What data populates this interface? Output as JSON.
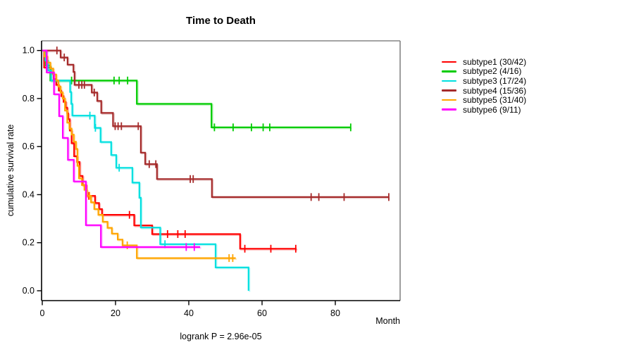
{
  "title": "Time to Death",
  "xlabel": "Month",
  "ylabel": "cumulative survival rate",
  "footnote": "logrank P = 2.96e-05",
  "chart_data": {
    "type": "line",
    "subtype": "kaplan-meier-step-curves",
    "title": "Time to Death",
    "xlabel": "Month",
    "ylabel": "cumulative survival rate",
    "annotation": "logrank P = 2.96e-05",
    "xlim": [
      0,
      98
    ],
    "ylim": [
      0.0,
      1.0
    ],
    "x_ticks": [
      0,
      20,
      40,
      60,
      80
    ],
    "y_ticks": [
      0.0,
      0.2,
      0.4,
      0.6,
      0.8,
      1.0
    ],
    "grid": false,
    "legend_position": "right-outside",
    "series": [
      {
        "name": "subtype1",
        "label": "subtype1 (30/42)",
        "events": "30/42",
        "color": "#FF0000",
        "end_month": 69.4,
        "steps": [
          [
            0,
            1.0
          ],
          [
            0.5,
            0.929
          ],
          [
            2.3,
            0.905
          ],
          [
            3.1,
            0.881
          ],
          [
            3.8,
            0.857
          ],
          [
            4.5,
            0.833
          ],
          [
            5.2,
            0.81
          ],
          [
            5.8,
            0.786
          ],
          [
            6.4,
            0.762
          ],
          [
            6.8,
            0.738
          ],
          [
            7.1,
            0.714
          ],
          [
            7.5,
            0.667
          ],
          [
            8.0,
            0.614
          ],
          [
            8.7,
            0.56
          ],
          [
            9.5,
            0.536
          ],
          [
            10.2,
            0.478
          ],
          [
            11.0,
            0.44
          ],
          [
            12.0,
            0.395
          ],
          [
            14.4,
            0.365
          ],
          [
            15.5,
            0.34
          ],
          [
            16.3,
            0.316
          ],
          [
            25.1,
            0.272
          ],
          [
            30.0,
            0.236
          ],
          [
            54.0,
            0.175
          ]
        ],
        "censors": [
          [
            12.7,
            0.395
          ],
          [
            23.8,
            0.316
          ],
          [
            34.2,
            0.236
          ],
          [
            37.0,
            0.236
          ],
          [
            39.0,
            0.236
          ],
          [
            55.3,
            0.175
          ],
          [
            62.4,
            0.175
          ],
          [
            69.2,
            0.175
          ]
        ]
      },
      {
        "name": "subtype2",
        "label": "subtype2 (4/16)",
        "events": "4/16",
        "color": "#00CC00",
        "end_month": 84.2,
        "steps": [
          [
            0,
            1.0
          ],
          [
            1.0,
            0.938
          ],
          [
            2.2,
            0.875
          ],
          [
            25.8,
            0.778
          ],
          [
            46.2,
            0.68
          ]
        ],
        "censors": [
          [
            8.0,
            0.875
          ],
          [
            19.6,
            0.875
          ],
          [
            21.0,
            0.875
          ],
          [
            23.3,
            0.875
          ],
          [
            47.0,
            0.68
          ],
          [
            52.1,
            0.68
          ],
          [
            57.1,
            0.68
          ],
          [
            60.3,
            0.68
          ],
          [
            62.1,
            0.68
          ],
          [
            84.2,
            0.68
          ]
        ]
      },
      {
        "name": "subtype3",
        "label": "subtype3 (17/24)",
        "events": "17/24",
        "color": "#00E0E0",
        "end_month": 56.3,
        "steps": [
          [
            0,
            1.0
          ],
          [
            0.8,
            0.958
          ],
          [
            1.6,
            0.917
          ],
          [
            2.4,
            0.875
          ],
          [
            7.6,
            0.827
          ],
          [
            7.9,
            0.778
          ],
          [
            8.2,
            0.729
          ],
          [
            14.3,
            0.678
          ],
          [
            15.9,
            0.619
          ],
          [
            18.8,
            0.565
          ],
          [
            20.2,
            0.512
          ],
          [
            24.6,
            0.45
          ],
          [
            26.5,
            0.387
          ],
          [
            26.9,
            0.263
          ],
          [
            32.2,
            0.194
          ],
          [
            47.3,
            0.097
          ],
          [
            56.3,
            0.0
          ]
        ],
        "censors": [
          [
            13.0,
            0.729
          ],
          [
            14.5,
            0.678
          ],
          [
            21.0,
            0.512
          ],
          [
            33.5,
            0.194
          ]
        ]
      },
      {
        "name": "subtype4",
        "label": "subtype4 (15/36)",
        "events": "15/36",
        "color": "#A52A2A",
        "end_month": 94.6,
        "steps": [
          [
            0,
            1.0
          ],
          [
            5.0,
            0.971
          ],
          [
            6.9,
            0.941
          ],
          [
            8.5,
            0.911
          ],
          [
            8.8,
            0.857
          ],
          [
            13.5,
            0.825
          ],
          [
            15.0,
            0.79
          ],
          [
            16.1,
            0.74
          ],
          [
            19.3,
            0.685
          ],
          [
            26.9,
            0.575
          ],
          [
            28.1,
            0.527
          ],
          [
            31.3,
            0.465
          ],
          [
            46.3,
            0.39
          ]
        ],
        "censors": [
          [
            4.0,
            1.0
          ],
          [
            6.0,
            0.971
          ],
          [
            10.0,
            0.857
          ],
          [
            10.8,
            0.857
          ],
          [
            11.5,
            0.857
          ],
          [
            14.2,
            0.825
          ],
          [
            19.9,
            0.685
          ],
          [
            20.7,
            0.685
          ],
          [
            21.6,
            0.685
          ],
          [
            26.2,
            0.685
          ],
          [
            29.2,
            0.527
          ],
          [
            31.0,
            0.527
          ],
          [
            40.4,
            0.465
          ],
          [
            41.2,
            0.465
          ],
          [
            73.4,
            0.39
          ],
          [
            75.5,
            0.39
          ],
          [
            82.4,
            0.39
          ],
          [
            94.6,
            0.39
          ]
        ]
      },
      {
        "name": "subtype5",
        "label": "subtype5 (31/40)",
        "events": "31/40",
        "color": "#FFA500",
        "end_month": 52.8,
        "steps": [
          [
            0,
            1.0
          ],
          [
            0.6,
            0.975
          ],
          [
            1.4,
            0.95
          ],
          [
            2.2,
            0.925
          ],
          [
            3.0,
            0.9
          ],
          [
            3.8,
            0.875
          ],
          [
            4.4,
            0.85
          ],
          [
            5.0,
            0.825
          ],
          [
            5.6,
            0.8
          ],
          [
            6.2,
            0.75
          ],
          [
            6.8,
            0.7
          ],
          [
            7.4,
            0.675
          ],
          [
            8.0,
            0.65
          ],
          [
            8.6,
            0.62
          ],
          [
            9.2,
            0.59
          ],
          [
            9.6,
            0.52
          ],
          [
            10.0,
            0.468
          ],
          [
            10.8,
            0.44
          ],
          [
            11.5,
            0.42
          ],
          [
            12.2,
            0.395
          ],
          [
            13.3,
            0.368
          ],
          [
            14.2,
            0.34
          ],
          [
            15.3,
            0.316
          ],
          [
            16.5,
            0.287
          ],
          [
            17.8,
            0.262
          ],
          [
            19.0,
            0.238
          ],
          [
            20.6,
            0.213
          ],
          [
            21.9,
            0.189
          ],
          [
            25.8,
            0.136
          ]
        ],
        "censors": [
          [
            12.9,
            0.395
          ],
          [
            23.2,
            0.189
          ],
          [
            51.0,
            0.136
          ],
          [
            52.0,
            0.136
          ]
        ]
      },
      {
        "name": "subtype6",
        "label": "subtype6 (9/11)",
        "events": "9/11",
        "color": "#FF00FF",
        "end_month": 43.1,
        "steps": [
          [
            0,
            1.0
          ],
          [
            1.2,
            0.909
          ],
          [
            3.2,
            0.818
          ],
          [
            4.6,
            0.727
          ],
          [
            5.6,
            0.636
          ],
          [
            7.0,
            0.545
          ],
          [
            8.6,
            0.455
          ],
          [
            11.9,
            0.273
          ],
          [
            16.0,
            0.182
          ]
        ],
        "censors": [
          [
            39.3,
            0.182
          ],
          [
            41.5,
            0.182
          ]
        ]
      }
    ]
  }
}
